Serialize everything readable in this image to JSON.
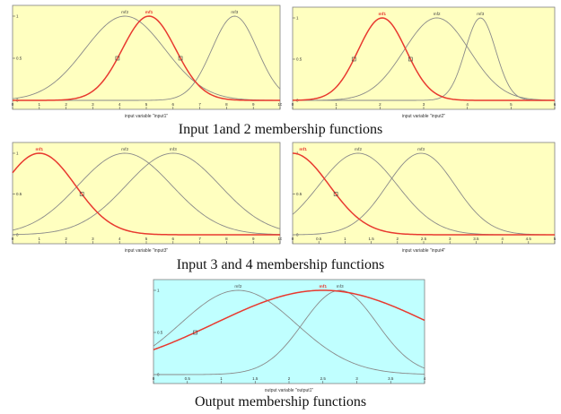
{
  "captions": {
    "row1": "Input 1and 2  membership functions",
    "row2": "Input 3 and 4 membership functions",
    "row3": "Output  membership functions"
  },
  "colors": {
    "yellow_bg": "#ffffc0",
    "cyan_bg": "#c0ffff",
    "highlight": "#e8392f",
    "curve": "#8a8a8a"
  },
  "chart_data": [
    {
      "type": "line",
      "xlabel": "input variable \"input1\"",
      "xlim": [
        0,
        10
      ],
      "ylim": [
        0,
        1
      ],
      "xticks": [
        "0",
        "1",
        "2",
        "3",
        "4",
        "5",
        "6",
        "7",
        "8",
        "9",
        "10"
      ],
      "yticks": [
        "0",
        "0.5",
        "1"
      ],
      "highlight": "mf1",
      "series": [
        {
          "name": "mf2",
          "mean": 4.2,
          "sigma": 1.5
        },
        {
          "name": "mf1",
          "mean": 5.1,
          "sigma": 1.0
        },
        {
          "name": "mf3",
          "mean": 8.3,
          "sigma": 0.85
        }
      ]
    },
    {
      "type": "line",
      "xlabel": "input variable \"input2\"",
      "xlim": [
        0,
        6
      ],
      "ylim": [
        0,
        1
      ],
      "xticks": [
        "0",
        "1",
        "2",
        "3",
        "4",
        "5",
        "6"
      ],
      "yticks": [
        "0",
        "0.5",
        "1"
      ],
      "highlight": "mf1",
      "series": [
        {
          "name": "mf1",
          "mean": 2.05,
          "sigma": 0.55
        },
        {
          "name": "mf2",
          "mean": 3.3,
          "sigma": 0.75
        },
        {
          "name": "mf3",
          "mean": 4.3,
          "sigma": 0.35
        }
      ]
    },
    {
      "type": "line",
      "xlabel": "input variable \"input3\"",
      "xlim": [
        0,
        10
      ],
      "ylim": [
        0,
        1
      ],
      "xticks": [
        "0",
        "1",
        "2",
        "3",
        "4",
        "5",
        "6",
        "7",
        "8",
        "9",
        "10"
      ],
      "yticks": [
        "0",
        "0.5",
        "1"
      ],
      "highlight": "mf1",
      "series": [
        {
          "name": "mf1",
          "mean": 1.0,
          "sigma": 1.35
        },
        {
          "name": "mf2",
          "mean": 4.2,
          "sigma": 1.75
        },
        {
          "name": "mf3",
          "mean": 6.0,
          "sigma": 1.75
        }
      ]
    },
    {
      "type": "line",
      "xlabel": "input variable \"input4\"",
      "xlim": [
        0,
        5
      ],
      "ylim": [
        0,
        1
      ],
      "xticks": [
        "0",
        "0.5",
        "1",
        "1.5",
        "2",
        "2.5",
        "3",
        "3.5",
        "4",
        "4.5",
        "5"
      ],
      "yticks": [
        "0",
        "0.5",
        "1"
      ],
      "highlight": "mf1",
      "series": [
        {
          "name": "mf1",
          "mean": 0.0,
          "sigma": 0.7
        },
        {
          "name": "mf2",
          "mean": 1.25,
          "sigma": 0.75
        },
        {
          "name": "mf3",
          "mean": 2.45,
          "sigma": 0.65
        }
      ]
    },
    {
      "type": "line",
      "xlabel": "output variable \"output1\"",
      "xlim": [
        0,
        4
      ],
      "ylim": [
        0,
        1
      ],
      "xticks": [
        "0",
        "0.5",
        "1",
        "1.5",
        "2",
        "2.5",
        "3",
        "3.5",
        "4"
      ],
      "yticks": [
        "0",
        "0.5",
        "1"
      ],
      "highlight": "mf1",
      "series": [
        {
          "name": "mf2",
          "mean": 1.25,
          "sigma": 0.85
        },
        {
          "name": "mf1",
          "mean": 2.5,
          "sigma": 1.6
        },
        {
          "name": "mf3",
          "mean": 2.75,
          "sigma": 0.55
        }
      ]
    }
  ]
}
